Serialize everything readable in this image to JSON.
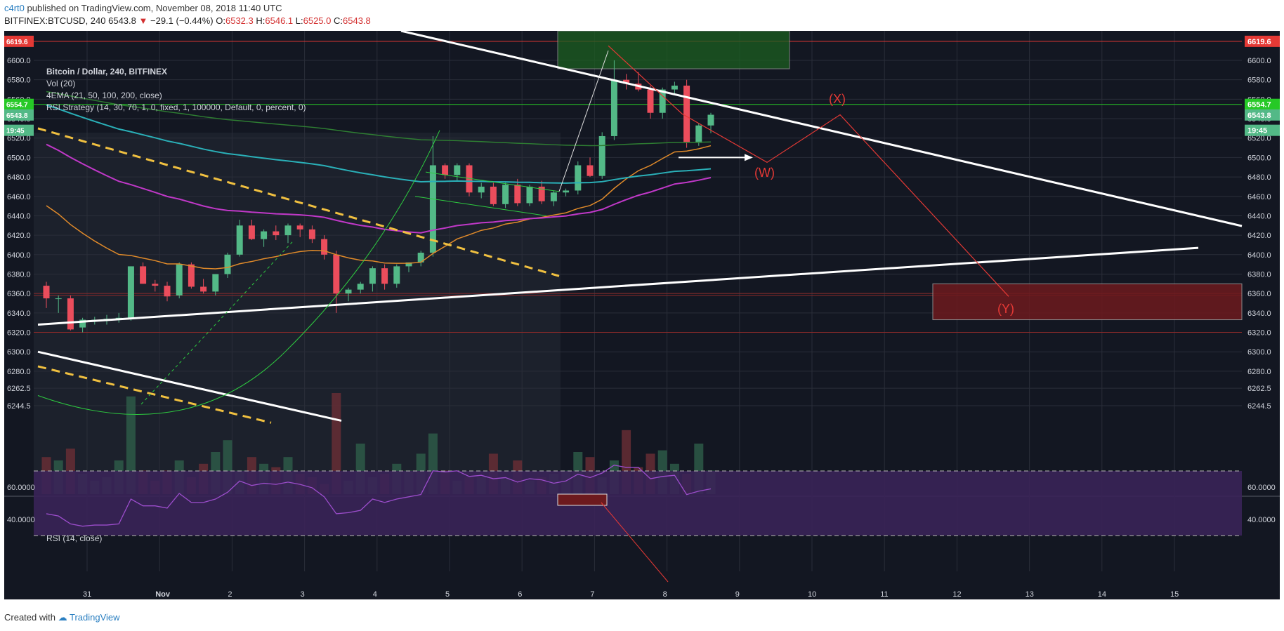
{
  "header": {
    "user": "c4rt0",
    "published_text": "published on TradingView.com, November 08, 2018 11:40 UTC"
  },
  "symbol_bar": {
    "symbol": "BITFINEX:BTCUSD, 240",
    "price": "6543.8",
    "change": "−29.1 (−0.44%)",
    "open_label": "O:",
    "open": "6532.3",
    "high_label": "H:",
    "high": "6546.1",
    "low_label": "L:",
    "low": "6525.0",
    "close_label": "C:",
    "close": "6543.8"
  },
  "legend": {
    "title": "Bitcoin / Dollar, 240, BITFINEX",
    "vol": "Vol (20)",
    "ema": "4EMA (21, 50, 100, 200, close)",
    "rsi_strategy": "RSI Strategy (14, 30, 70, 1, 0, fixed, 1, 100000, Default, 0, percent, 0)"
  },
  "rsi_panel": {
    "title": "RSI (14, close)"
  },
  "footer": {
    "created_with": "Created with",
    "brand": "TradingView"
  },
  "colors": {
    "background": "#131722",
    "up": "#53b987",
    "down": "#eb4d5c",
    "ema21": "#e08a2a",
    "ema50": "#c038c8",
    "ema100": "#2ab0b8",
    "ema200": "#2e7d32",
    "trend_white": "#ffffff",
    "trend_yellow": "#f0c040",
    "wave_red": "#e53935",
    "rsi_line": "#9c4dcc",
    "rsi_band": "#3a2458"
  },
  "chart_data": {
    "type": "candlestick",
    "y_axis": {
      "labels": [
        "6600.0",
        "6580.0",
        "6560.0",
        "6540.0",
        "6520.0",
        "6500.0",
        "6480.0",
        "6460.0",
        "6440.0",
        "6420.0",
        "6400.0",
        "6380.0",
        "6360.0",
        "6340.0",
        "6320.0",
        "6300.0",
        "6280.0",
        "6262.5",
        "6244.5"
      ],
      "badges": [
        {
          "text": "6619.6",
          "color": "#e53935"
        },
        {
          "text": "6554.7",
          "color": "#26c926"
        },
        {
          "text": "6543.8",
          "color": "#53b987"
        },
        {
          "text": "19:45",
          "color": "#53b987"
        }
      ]
    },
    "x_axis": {
      "ticks": [
        "31",
        "Nov",
        "2",
        "3",
        "4",
        "5",
        "6",
        "7",
        "8",
        "9",
        "10",
        "11",
        "12",
        "13",
        "14",
        "15"
      ]
    },
    "rsi_axis": {
      "labels": [
        "60.0000",
        "40.0000"
      ]
    },
    "candles": [
      [
        6368,
        6372,
        6345,
        6355
      ],
      [
        6355,
        6358,
        6340,
        6355
      ],
      [
        6355,
        6358,
        6322,
        6323
      ],
      [
        6325,
        6335,
        6320,
        6333
      ],
      [
        6332,
        6336,
        6328,
        6333
      ],
      [
        6333,
        6338,
        6328,
        6334
      ],
      [
        6334,
        6340,
        6330,
        6335
      ],
      [
        6335,
        6388,
        6332,
        6388
      ],
      [
        6388,
        6392,
        6370,
        6370
      ],
      [
        6370,
        6374,
        6362,
        6368
      ],
      [
        6368,
        6372,
        6352,
        6357
      ],
      [
        6358,
        6392,
        6355,
        6390
      ],
      [
        6390,
        6392,
        6365,
        6367
      ],
      [
        6367,
        6375,
        6360,
        6362
      ],
      [
        6362,
        6380,
        6358,
        6380
      ],
      [
        6380,
        6402,
        6376,
        6400
      ],
      [
        6400,
        6436,
        6398,
        6430
      ],
      [
        6430,
        6436,
        6415,
        6416
      ],
      [
        6416,
        6426,
        6408,
        6424
      ],
      [
        6424,
        6430,
        6415,
        6420
      ],
      [
        6420,
        6432,
        6412,
        6430
      ],
      [
        6430,
        6432,
        6418,
        6426
      ],
      [
        6426,
        6430,
        6412,
        6416
      ],
      [
        6416,
        6420,
        6395,
        6400
      ],
      [
        6400,
        6404,
        6340,
        6360
      ],
      [
        6360,
        6366,
        6352,
        6364
      ],
      [
        6364,
        6372,
        6360,
        6370
      ],
      [
        6370,
        6388,
        6362,
        6386
      ],
      [
        6386,
        6390,
        6364,
        6370
      ],
      [
        6370,
        6390,
        6366,
        6388
      ],
      [
        6388,
        6392,
        6382,
        6392
      ],
      [
        6392,
        6404,
        6388,
        6402
      ],
      [
        6402,
        6522,
        6398,
        6492
      ],
      [
        6492,
        6494,
        6478,
        6482
      ],
      [
        6482,
        6494,
        6476,
        6492
      ],
      [
        6492,
        6494,
        6460,
        6464
      ],
      [
        6464,
        6474,
        6458,
        6470
      ],
      [
        6470,
        6474,
        6450,
        6452
      ],
      [
        6452,
        6474,
        6448,
        6472
      ],
      [
        6472,
        6478,
        6450,
        6453
      ],
      [
        6453,
        6472,
        6450,
        6470
      ],
      [
        6470,
        6476,
        6452,
        6455
      ],
      [
        6455,
        6466,
        6450,
        6464
      ],
      [
        6464,
        6468,
        6460,
        6466
      ],
      [
        6466,
        6496,
        6462,
        6492
      ],
      [
        6492,
        6500,
        6480,
        6481
      ],
      [
        6481,
        6526,
        6478,
        6522
      ],
      [
        6522,
        6600,
        6518,
        6580
      ],
      [
        6580,
        6586,
        6570,
        6576
      ],
      [
        6576,
        6588,
        6568,
        6570
      ],
      [
        6570,
        6574,
        6540,
        6546
      ],
      [
        6546,
        6572,
        6540,
        6570
      ],
      [
        6570,
        6578,
        6566,
        6574
      ],
      [
        6574,
        6580,
        6510,
        6515
      ],
      [
        6515,
        6535,
        6512,
        6533
      ],
      [
        6533,
        6546,
        6525,
        6544
      ]
    ],
    "volume": [
      22,
      20,
      27,
      12,
      8,
      10,
      20,
      58,
      14,
      8,
      14,
      20,
      10,
      18,
      25,
      32,
      14,
      22,
      18,
      16,
      22,
      12,
      10,
      6,
      60,
      8,
      30,
      10,
      12,
      18,
      14,
      24,
      36,
      14,
      8,
      10,
      10,
      24,
      10,
      20,
      8,
      10,
      12,
      14,
      25,
      22,
      10,
      20,
      38,
      16,
      24,
      26,
      18,
      12,
      30,
      14
    ],
    "rsi": [
      45,
      43,
      36,
      34,
      35,
      35,
      36,
      58,
      52,
      52,
      50,
      63,
      55,
      55,
      58,
      64,
      74,
      70,
      72,
      71,
      73,
      71,
      68,
      60,
      45,
      46,
      48,
      58,
      55,
      58,
      60,
      62,
      83,
      82,
      83,
      78,
      79,
      76,
      77,
      73,
      76,
      75,
      72,
      74,
      80,
      77,
      81,
      88,
      86,
      86,
      76,
      78,
      79,
      62,
      65,
      67
    ]
  }
}
